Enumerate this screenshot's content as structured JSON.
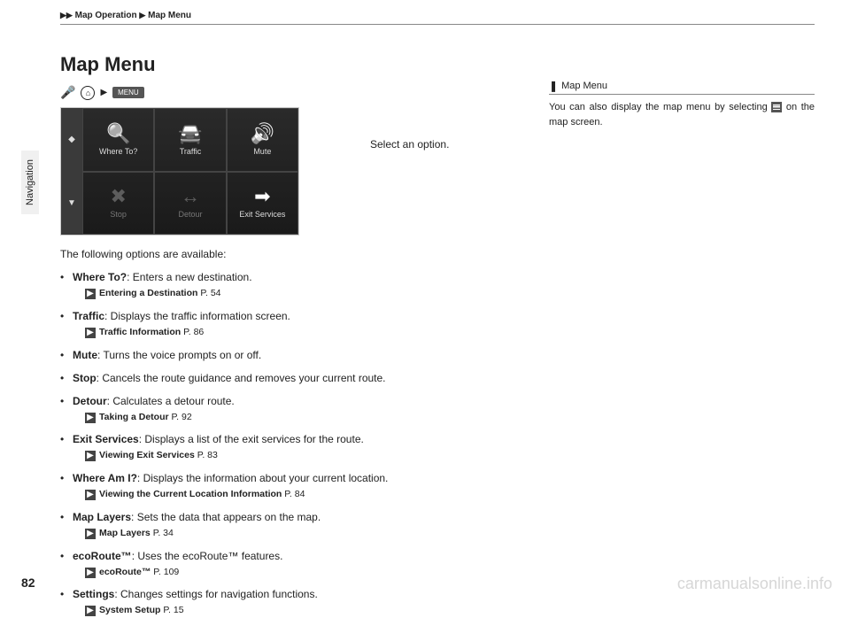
{
  "breadcrumb": {
    "a": "Map Operation",
    "b": "Map Menu"
  },
  "sidetab": "Navigation",
  "pageNumber": "82",
  "title": "Map Menu",
  "menuLabel": "MENU",
  "caption": "Select an option.",
  "screenshot": {
    "cells": [
      {
        "label": "Where To?",
        "icon": "🔍",
        "dim": false
      },
      {
        "label": "Traffic",
        "icon": "🚘",
        "dim": false
      },
      {
        "label": "Mute",
        "icon": "🔊",
        "dim": false
      },
      {
        "label": "Stop",
        "icon": "✖",
        "dim": true
      },
      {
        "label": "Detour",
        "icon": "↔",
        "dim": true
      },
      {
        "label": "Exit Services",
        "icon": "➡",
        "dim": false
      }
    ]
  },
  "intro": "The following options are available:",
  "options": [
    {
      "term": "Where To?",
      "desc": ": Enters a new destination.",
      "ref": "Entering a Destination",
      "page": "P. 54"
    },
    {
      "term": "Traffic",
      "desc": ": Displays the traffic information screen.",
      "ref": "Traffic Information",
      "page": "P. 86"
    },
    {
      "term": "Mute",
      "desc": ": Turns the voice prompts on or off.",
      "ref": null,
      "page": null
    },
    {
      "term": "Stop",
      "desc": ": Cancels the route guidance and removes your current route.",
      "ref": null,
      "page": null
    },
    {
      "term": "Detour",
      "desc": ": Calculates a detour route.",
      "ref": "Taking a Detour",
      "page": "P. 92"
    },
    {
      "term": "Exit Services",
      "desc": ": Displays a list of the exit services for the route.",
      "ref": "Viewing Exit Services",
      "page": "P. 83"
    },
    {
      "term": "Where Am I?",
      "desc": ": Displays the information about your current location.",
      "ref": "Viewing the Current Location Information",
      "page": "P. 84"
    },
    {
      "term": "Map Layers",
      "desc": ": Sets the data that appears on the map.",
      "ref": "Map Layers",
      "page": "P. 34"
    },
    {
      "term": "ecoRoute™",
      "desc": ": Uses the ecoRoute™ features.",
      "ref": "ecoRoute™",
      "page": "P. 109"
    },
    {
      "term": "Settings",
      "desc": ": Changes settings for navigation functions.",
      "ref": "System Setup",
      "page": "P. 15"
    }
  ],
  "sidebox": {
    "head": "Map Menu",
    "body1": "You can also display the map menu by selecting ",
    "body2": " on the map screen."
  },
  "watermark": "carmanualsonline.info"
}
